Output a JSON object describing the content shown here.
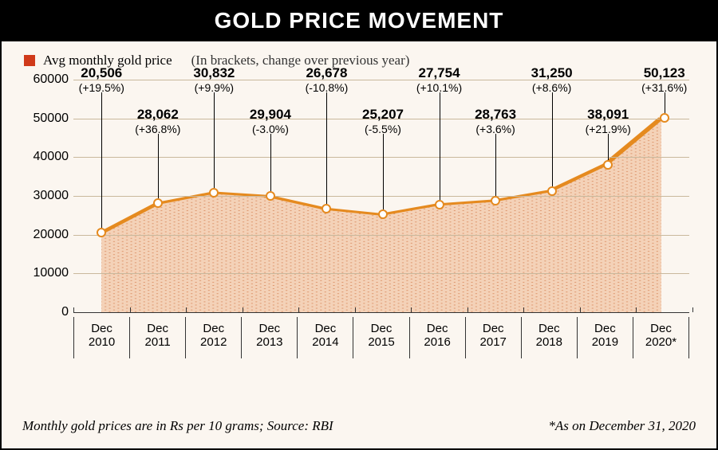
{
  "title": "GOLD PRICE MOVEMENT",
  "legend": {
    "swatch_color": "#d03a1a",
    "series_label": "Avg monthly gold price",
    "note": "(In brackets, change over previous year)"
  },
  "chart": {
    "type": "area",
    "ylim": [
      0,
      60000
    ],
    "ytick_step": 10000,
    "yticks": [
      "0",
      "10000",
      "20000",
      "30000",
      "40000",
      "50000",
      "60000"
    ],
    "grid_color": "#c9b89c",
    "axis_color": "#333333",
    "area_fill": "#f4d2b8",
    "area_dot_pattern": "#d98b5f",
    "line_color": "#e58a1f",
    "marker_stroke": "#e58a1f",
    "marker_fill": "#ffffff",
    "marker_radius": 6,
    "line_width": 3,
    "background_color": "#fbf6f0",
    "points": [
      {
        "x_top": "Dec",
        "x_bottom": "2010",
        "value": 20506,
        "pct": "(+19.5%)",
        "label_row": "top"
      },
      {
        "x_top": "Dec",
        "x_bottom": "2011",
        "value": 28062,
        "pct": "(+36.8%)",
        "label_row": "bottom"
      },
      {
        "x_top": "Dec",
        "x_bottom": "2012",
        "value": 30832,
        "pct": "(+9.9%)",
        "label_row": "top"
      },
      {
        "x_top": "Dec",
        "x_bottom": "2013",
        "value": 29904,
        "pct": "(-3.0%)",
        "label_row": "bottom"
      },
      {
        "x_top": "Dec",
        "x_bottom": "2014",
        "value": 26678,
        "pct": "(-10.8%)",
        "label_row": "top"
      },
      {
        "x_top": "Dec",
        "x_bottom": "2015",
        "value": 25207,
        "pct": "(-5.5%)",
        "label_row": "bottom"
      },
      {
        "x_top": "Dec",
        "x_bottom": "2016",
        "value": 27754,
        "pct": "(+10.1%)",
        "label_row": "top"
      },
      {
        "x_top": "Dec",
        "x_bottom": "2017",
        "value": 28763,
        "pct": "(+3.6%)",
        "label_row": "bottom"
      },
      {
        "x_top": "Dec",
        "x_bottom": "2018",
        "value": 31250,
        "pct": "(+8.6%)",
        "label_row": "top"
      },
      {
        "x_top": "Dec",
        "x_bottom": "2019",
        "value": 38091,
        "pct": "(+21.9%)",
        "label_row": "bottom"
      },
      {
        "x_top": "Dec",
        "x_bottom": "2020*",
        "value": 50123,
        "pct": "(+31.6%)",
        "label_row": "top"
      }
    ],
    "callout_top_offset": -18,
    "callout_bottom_offset": 34
  },
  "footer": {
    "left": "Monthly gold prices are in Rs per 10 grams; Source: RBI",
    "right": "*As on December 31, 2020"
  }
}
